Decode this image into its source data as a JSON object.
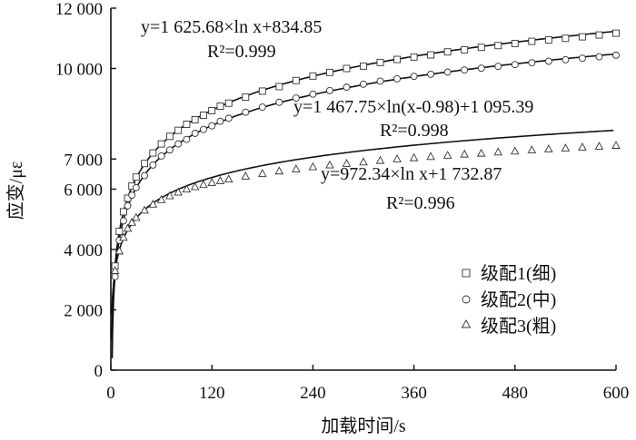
{
  "chart_data": {
    "type": "scatter",
    "xlabel": "加载时间/s",
    "ylabel": "应变/με",
    "xlim": [
      0,
      600
    ],
    "ylim": [
      0,
      12000
    ],
    "x_ticks": [
      0,
      120,
      240,
      360,
      480,
      600
    ],
    "x_tick_labels": [
      "0",
      "120",
      "240",
      "360",
      "480",
      "600"
    ],
    "y_ticks": [
      0,
      2000,
      4000,
      6000,
      7000,
      10000,
      12000
    ],
    "y_tick_labels": [
      "0",
      "2 000",
      "4 000",
      "6 000",
      "7 000",
      "10 000",
      "12 000"
    ],
    "grid": false,
    "legend_position": "bottom-right",
    "series": [
      {
        "name": "级配1(细)",
        "marker": "square",
        "fit": {
          "a": 1625.68,
          "b": 834.85,
          "shift": 0
        },
        "equation": "y=1 625.68×ln x+834.85",
        "r2": "R²=0.999",
        "x": [
          5,
          10,
          15,
          20,
          25,
          30,
          40,
          50,
          60,
          70,
          80,
          90,
          100,
          110,
          120,
          130,
          140,
          160,
          180,
          200,
          220,
          240,
          260,
          280,
          300,
          320,
          340,
          360,
          380,
          400,
          420,
          440,
          460,
          480,
          500,
          520,
          540,
          560,
          580,
          600
        ],
        "values": [
          3450,
          4600,
          5250,
          5700,
          6100,
          6400,
          6850,
          7200,
          7500,
          7750,
          7950,
          8150,
          8300,
          8450,
          8600,
          8750,
          8850,
          9050,
          9250,
          9400,
          9600,
          9750,
          9870,
          10000,
          10080,
          10200,
          10300,
          10380,
          10450,
          10550,
          10620,
          10700,
          10760,
          10830,
          10900,
          10950,
          11000,
          11050,
          11110,
          11170
        ]
      },
      {
        "name": "级配2(中)",
        "marker": "circle",
        "fit": {
          "a": 1467.75,
          "b": 1095.39,
          "shift": 0.98
        },
        "equation": "y=1 467.75×ln(x-0.98)+1 095.39",
        "r2": "R²=0.998",
        "x": [
          5,
          10,
          15,
          20,
          25,
          30,
          40,
          50,
          60,
          70,
          80,
          90,
          100,
          110,
          120,
          130,
          140,
          160,
          180,
          200,
          220,
          240,
          260,
          280,
          300,
          320,
          340,
          360,
          380,
          400,
          420,
          440,
          460,
          480,
          500,
          520,
          540,
          560,
          580,
          600
        ],
        "values": [
          3100,
          4300,
          4950,
          5450,
          5800,
          6050,
          6450,
          6800,
          7100,
          7300,
          7500,
          7650,
          7850,
          7980,
          8100,
          8250,
          8350,
          8550,
          8720,
          8880,
          9020,
          9150,
          9270,
          9380,
          9480,
          9580,
          9660,
          9740,
          9810,
          9880,
          9950,
          10010,
          10070,
          10130,
          10190,
          10240,
          10290,
          10340,
          10390,
          10440
        ]
      },
      {
        "name": "级配3(粗)",
        "marker": "triangle",
        "fit": {
          "a": 972.34,
          "b": 1732.87,
          "shift": 0
        },
        "equation": "y=972.34×ln x+1 732.87",
        "r2": "R²=0.996",
        "x": [
          5,
          10,
          15,
          20,
          25,
          30,
          40,
          50,
          60,
          70,
          80,
          90,
          100,
          110,
          120,
          130,
          140,
          160,
          180,
          200,
          220,
          240,
          260,
          280,
          300,
          320,
          340,
          360,
          380,
          400,
          420,
          440,
          460,
          480,
          500,
          520,
          540,
          560,
          580,
          600
        ],
        "values": [
          3300,
          3950,
          4400,
          4700,
          4900,
          5060,
          5300,
          5500,
          5650,
          5780,
          5900,
          6000,
          6080,
          6150,
          6220,
          6280,
          6330,
          6430,
          6520,
          6600,
          6670,
          6740,
          6800,
          6850,
          6900,
          6950,
          7000,
          7040,
          7080,
          7120,
          7160,
          7190,
          7230,
          7260,
          7300,
          7330,
          7360,
          7390,
          7420,
          7450
        ]
      }
    ]
  }
}
